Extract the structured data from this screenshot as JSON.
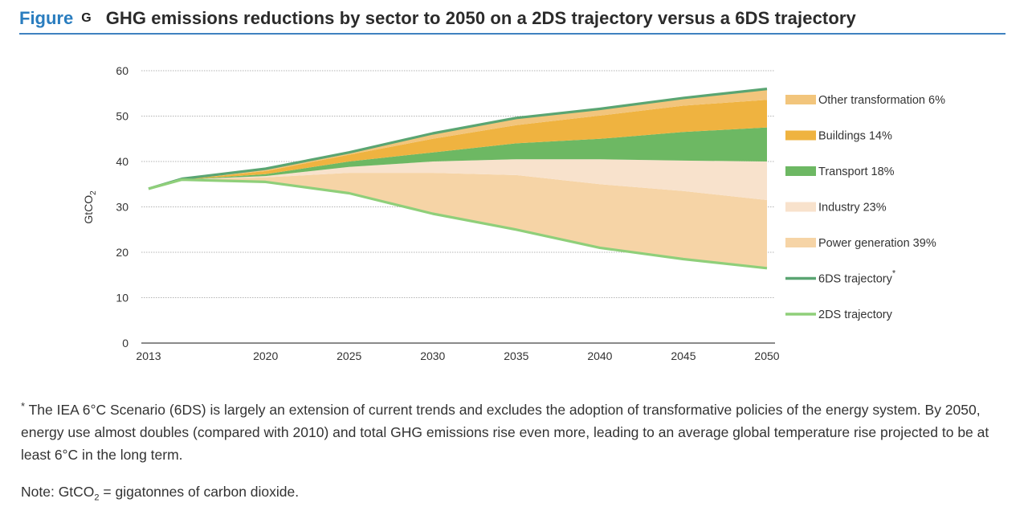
{
  "header": {
    "figure_word": "Figure",
    "figure_letter": "G",
    "title": "GHG emissions reductions by sector to 2050 on a 2DS trajectory versus a 6DS trajectory"
  },
  "colors": {
    "accent": "#2a7dbf",
    "other_transformation": "#f2c57c",
    "buildings": "#efb340",
    "transport": "#6db863",
    "industry": "#f8e2cc",
    "power_generation": "#f6d4a6",
    "line_6ds": "#5aa572",
    "line_2ds": "#8fcf7a"
  },
  "chart_data": {
    "type": "area",
    "title": "",
    "xlabel": "",
    "ylabel": "GtCO2",
    "ylabel_main": "GtCO",
    "ylabel_sub": "2",
    "ylim": [
      0,
      60
    ],
    "yticks": [
      0,
      10,
      20,
      30,
      40,
      50,
      60
    ],
    "xticks": [
      "2013",
      "2020",
      "2025",
      "2030",
      "2035",
      "2040",
      "2045",
      "2050"
    ],
    "grid": true,
    "legend_position": "right",
    "x": [
      2013,
      2015,
      2020,
      2025,
      2030,
      2035,
      2040,
      2045,
      2050
    ],
    "lines": [
      {
        "name": "6DS trajectory",
        "marker": "*",
        "values": [
          34,
          36.2,
          38.4,
          42,
          46.2,
          49.6,
          51.6,
          54,
          56
        ]
      },
      {
        "name": "2DS trajectory",
        "values": [
          34,
          36,
          35.5,
          33,
          28.5,
          25,
          21,
          18.5,
          16.5
        ]
      }
    ],
    "wedges": [
      {
        "name": "Power generation 39%",
        "lower": "2DS trajectory",
        "upper": [
          34,
          36,
          36.5,
          37.5,
          37.5,
          37,
          35,
          33.5,
          31.5
        ]
      },
      {
        "name": "Industry 23%",
        "upper": [
          34,
          36,
          36.8,
          38.8,
          40,
          40.5,
          40.5,
          40.2,
          40
        ]
      },
      {
        "name": "Transport 18%",
        "upper": [
          34,
          36,
          37.2,
          40,
          42,
          44,
          45,
          46.5,
          47.5
        ]
      },
      {
        "name": "Buildings 14%",
        "upper": [
          34,
          36,
          37.9,
          41.5,
          45,
          48,
          50.1,
          52.3,
          53.6
        ]
      },
      {
        "name": "Other transformation 6%",
        "upper": "6DS trajectory"
      }
    ],
    "legend": [
      {
        "label": "Other transformation 6%",
        "kind": "band",
        "color_key": "other_transformation"
      },
      {
        "label": "Buildings 14%",
        "kind": "band",
        "color_key": "buildings"
      },
      {
        "label": "Transport 18%",
        "kind": "band",
        "color_key": "transport"
      },
      {
        "label": "Industry 23%",
        "kind": "band",
        "color_key": "industry"
      },
      {
        "label": "Power generation 39%",
        "kind": "band",
        "color_key": "power_generation"
      },
      {
        "label": "6DS trajectory",
        "kind": "line",
        "color_key": "line_6ds",
        "marker": "*"
      },
      {
        "label": "2DS trajectory",
        "kind": "line",
        "color_key": "line_2ds"
      }
    ]
  },
  "footnote": {
    "marker": "*",
    "text": "The IEA 6°C Scenario (6DS) is largely an extension of current trends and excludes the adoption of transformative policies of the energy system. By 2050, energy use almost doubles (compared with 2010) and total GHG emissions rise even more, leading to an average global temperature rise projected to be at least 6°C in the long term."
  },
  "note": {
    "prefix": "Note: GtCO",
    "sub": "2",
    "suffix": " = gigatonnes of carbon dioxide."
  }
}
